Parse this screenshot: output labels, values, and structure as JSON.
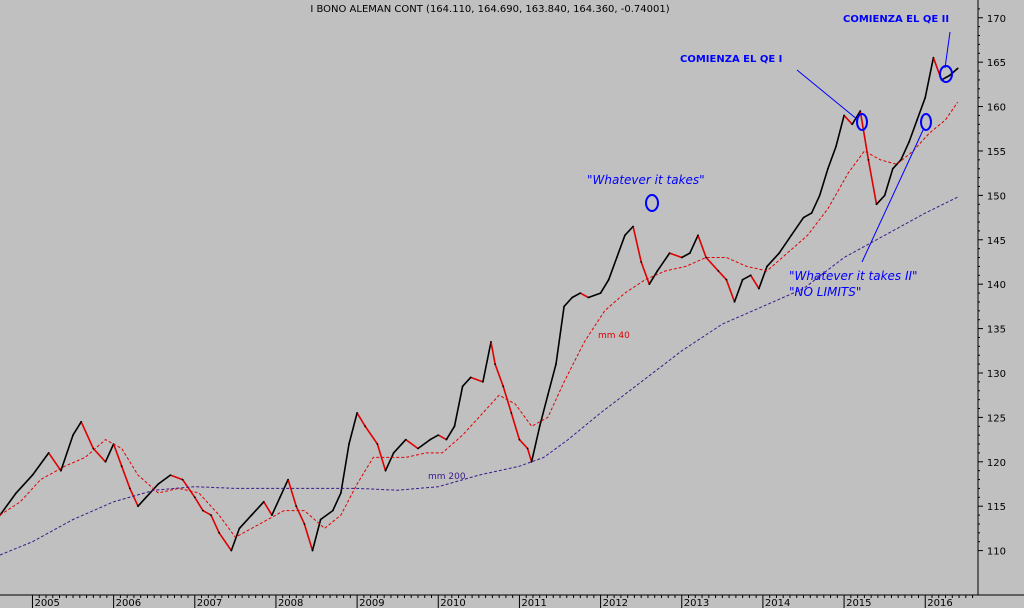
{
  "chart_data": {
    "type": "line",
    "title": "I BONO ALEMAN CONT (164.110, 164.690, 163.840, 164.360, -0.74001)",
    "xlabel": "",
    "ylabel": "",
    "ylim": [
      105,
      172
    ],
    "xlim": [
      2004.6,
      2016.65
    ],
    "yticks": [
      110,
      115,
      120,
      125,
      130,
      135,
      140,
      145,
      150,
      155,
      160,
      165,
      170
    ],
    "xticks": [
      "2005",
      "2006",
      "2007",
      "2008",
      "2009",
      "2010",
      "2011",
      "2012",
      "2013",
      "2014",
      "2015",
      "2016"
    ],
    "grid": false,
    "series": [
      {
        "name": "",
        "color": "#000000",
        "points": [
          [
            2004.6,
            114.0
          ],
          [
            2004.8,
            116.5
          ],
          [
            2005.0,
            118.5
          ],
          [
            2005.2,
            121.0
          ],
          [
            2005.35,
            119.0
          ],
          [
            2005.5,
            123.0
          ],
          [
            2005.6,
            124.5
          ],
          [
            2005.75,
            121.5
          ],
          [
            2005.9,
            120.0
          ],
          [
            2006.0,
            122.0
          ],
          [
            2006.1,
            119.5
          ],
          [
            2006.2,
            117.0
          ],
          [
            2006.3,
            115.0
          ],
          [
            2006.4,
            116.0
          ],
          [
            2006.55,
            117.5
          ],
          [
            2006.7,
            118.5
          ],
          [
            2006.85,
            118.0
          ],
          [
            2007.0,
            116.0
          ],
          [
            2007.1,
            114.5
          ],
          [
            2007.2,
            114.0
          ],
          [
            2007.3,
            112.0
          ],
          [
            2007.45,
            110.0
          ],
          [
            2007.55,
            112.5
          ],
          [
            2007.7,
            114.0
          ],
          [
            2007.85,
            115.5
          ],
          [
            2007.95,
            114.0
          ],
          [
            2008.05,
            116.0
          ],
          [
            2008.15,
            118.0
          ],
          [
            2008.25,
            115.0
          ],
          [
            2008.35,
            113.0
          ],
          [
            2008.45,
            110.0
          ],
          [
            2008.55,
            113.5
          ],
          [
            2008.7,
            114.5
          ],
          [
            2008.8,
            116.5
          ],
          [
            2008.9,
            122.0
          ],
          [
            2009.0,
            125.5
          ],
          [
            2009.1,
            124.0
          ],
          [
            2009.25,
            122.0
          ],
          [
            2009.35,
            119.0
          ],
          [
            2009.45,
            121.0
          ],
          [
            2009.6,
            122.5
          ],
          [
            2009.75,
            121.5
          ],
          [
            2009.9,
            122.5
          ],
          [
            2010.0,
            123.0
          ],
          [
            2010.1,
            122.5
          ],
          [
            2010.2,
            124.0
          ],
          [
            2010.3,
            128.5
          ],
          [
            2010.4,
            129.5
          ],
          [
            2010.55,
            129.0
          ],
          [
            2010.65,
            133.5
          ],
          [
            2010.7,
            131.0
          ],
          [
            2010.8,
            128.5
          ],
          [
            2010.9,
            125.5
          ],
          [
            2011.0,
            122.5
          ],
          [
            2011.1,
            121.5
          ],
          [
            2011.15,
            120.0
          ],
          [
            2011.25,
            124.0
          ],
          [
            2011.35,
            127.5
          ],
          [
            2011.45,
            131.0
          ],
          [
            2011.55,
            137.5
          ],
          [
            2011.65,
            138.5
          ],
          [
            2011.75,
            139.0
          ],
          [
            2011.85,
            138.5
          ],
          [
            2012.0,
            139.0
          ],
          [
            2012.1,
            140.5
          ],
          [
            2012.2,
            143.0
          ],
          [
            2012.3,
            145.5
          ],
          [
            2012.4,
            146.5
          ],
          [
            2012.5,
            142.5
          ],
          [
            2012.6,
            140.0
          ],
          [
            2012.7,
            141.5
          ],
          [
            2012.85,
            143.5
          ],
          [
            2013.0,
            143.0
          ],
          [
            2013.1,
            143.5
          ],
          [
            2013.2,
            145.5
          ],
          [
            2013.3,
            143.0
          ],
          [
            2013.45,
            141.5
          ],
          [
            2013.55,
            140.5
          ],
          [
            2013.65,
            138.0
          ],
          [
            2013.75,
            140.5
          ],
          [
            2013.85,
            141.0
          ],
          [
            2013.95,
            139.5
          ],
          [
            2014.05,
            142.0
          ],
          [
            2014.2,
            143.5
          ],
          [
            2014.35,
            145.5
          ],
          [
            2014.5,
            147.5
          ],
          [
            2014.6,
            148.0
          ],
          [
            2014.7,
            150.0
          ],
          [
            2014.8,
            153.0
          ],
          [
            2014.9,
            155.5
          ],
          [
            2015.0,
            159.0
          ],
          [
            2015.1,
            158.0
          ],
          [
            2015.2,
            159.5
          ],
          [
            2015.3,
            154.0
          ],
          [
            2015.4,
            149.0
          ],
          [
            2015.5,
            150.0
          ],
          [
            2015.6,
            153.0
          ],
          [
            2015.7,
            154.0
          ],
          [
            2015.8,
            156.0
          ],
          [
            2015.9,
            158.5
          ],
          [
            2016.0,
            161.0
          ],
          [
            2016.1,
            165.5
          ],
          [
            2016.2,
            163.0
          ],
          [
            2016.3,
            163.5
          ],
          [
            2016.4,
            164.3
          ]
        ]
      },
      {
        "name": "mm 40",
        "color": "#e00000",
        "points": [
          [
            2004.6,
            114.0
          ],
          [
            2004.85,
            115.5
          ],
          [
            2005.1,
            118.0
          ],
          [
            2005.4,
            119.5
          ],
          [
            2005.65,
            120.5
          ],
          [
            2005.9,
            122.5
          ],
          [
            2006.1,
            121.5
          ],
          [
            2006.3,
            118.5
          ],
          [
            2006.55,
            116.5
          ],
          [
            2006.8,
            117.0
          ],
          [
            2007.05,
            116.5
          ],
          [
            2007.3,
            114.0
          ],
          [
            2007.5,
            111.5
          ],
          [
            2007.7,
            112.5
          ],
          [
            2007.9,
            113.5
          ],
          [
            2008.1,
            114.5
          ],
          [
            2008.35,
            114.5
          ],
          [
            2008.6,
            112.5
          ],
          [
            2008.8,
            114.0
          ],
          [
            2009.0,
            117.5
          ],
          [
            2009.2,
            120.5
          ],
          [
            2009.4,
            120.5
          ],
          [
            2009.6,
            120.5
          ],
          [
            2009.85,
            121.0
          ],
          [
            2010.05,
            121.0
          ],
          [
            2010.3,
            123.0
          ],
          [
            2010.55,
            125.5
          ],
          [
            2010.75,
            127.5
          ],
          [
            2010.95,
            126.5
          ],
          [
            2011.15,
            124.0
          ],
          [
            2011.35,
            125.0
          ],
          [
            2011.55,
            129.0
          ],
          [
            2011.8,
            133.5
          ],
          [
            2012.05,
            137.0
          ],
          [
            2012.3,
            139.0
          ],
          [
            2012.55,
            140.5
          ],
          [
            2012.8,
            141.5
          ],
          [
            2013.05,
            142.0
          ],
          [
            2013.3,
            143.0
          ],
          [
            2013.55,
            143.0
          ],
          [
            2013.8,
            142.0
          ],
          [
            2014.05,
            141.5
          ],
          [
            2014.3,
            143.5
          ],
          [
            2014.55,
            145.5
          ],
          [
            2014.8,
            148.5
          ],
          [
            2015.05,
            152.5
          ],
          [
            2015.25,
            155.0
          ],
          [
            2015.45,
            154.0
          ],
          [
            2015.65,
            153.5
          ],
          [
            2015.85,
            155.0
          ],
          [
            2016.05,
            157.0
          ],
          [
            2016.25,
            158.5
          ],
          [
            2016.4,
            160.5
          ]
        ]
      },
      {
        "name": "mm 200",
        "color": "#3a1a8a",
        "points": [
          [
            2004.6,
            109.5
          ],
          [
            2005.0,
            111.0
          ],
          [
            2005.5,
            113.5
          ],
          [
            2006.0,
            115.5
          ],
          [
            2006.5,
            116.8
          ],
          [
            2007.0,
            117.2
          ],
          [
            2007.5,
            117.0
          ],
          [
            2008.0,
            117.0
          ],
          [
            2008.5,
            117.0
          ],
          [
            2009.0,
            117.0
          ],
          [
            2009.5,
            116.8
          ],
          [
            2010.0,
            117.2
          ],
          [
            2010.5,
            118.5
          ],
          [
            2011.0,
            119.5
          ],
          [
            2011.3,
            120.5
          ],
          [
            2011.6,
            122.5
          ],
          [
            2012.0,
            125.5
          ],
          [
            2012.5,
            129.0
          ],
          [
            2013.0,
            132.5
          ],
          [
            2013.5,
            135.5
          ],
          [
            2014.0,
            137.5
          ],
          [
            2014.5,
            139.5
          ],
          [
            2015.0,
            143.0
          ],
          [
            2015.5,
            145.5
          ],
          [
            2016.0,
            148.0
          ],
          [
            2016.4,
            149.8
          ]
        ]
      }
    ],
    "annotations": [
      {
        "text": "COMIENZA EL QE II",
        "style": "bold"
      },
      {
        "text": "COMIENZA EL QE I",
        "style": "bold"
      },
      {
        "text": "\"Whatever it takes\"",
        "style": "italic"
      },
      {
        "text": "\"Whatever it takes II\"",
        "style": "italic"
      },
      {
        "text": "\"NO LIMITS\"",
        "style": "italic"
      }
    ],
    "series_labels": {
      "ma40": "mm 40",
      "ma200": "mm 200"
    },
    "colors": {
      "background": "#c0c0c0",
      "price": "#000000",
      "price_down": "#e00000",
      "ma40": "#e00000",
      "ma200": "#3a1a8a",
      "annotation": "#0000ff"
    }
  }
}
